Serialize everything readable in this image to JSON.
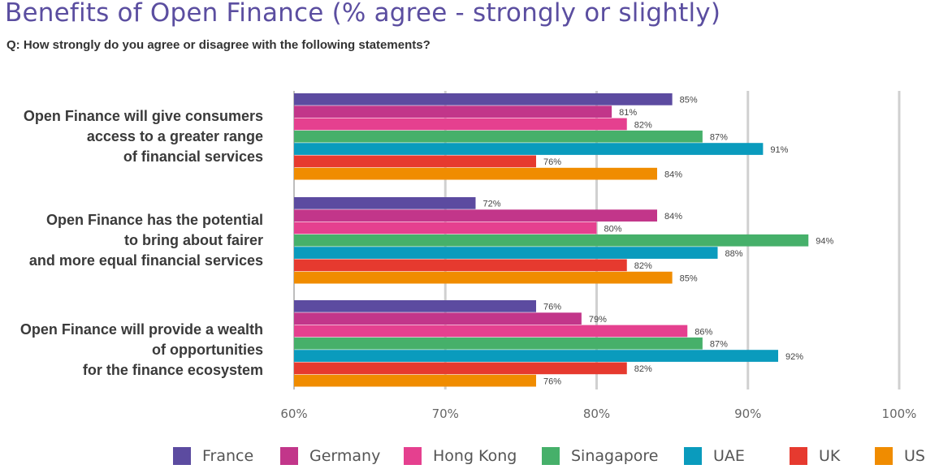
{
  "title": "Benefits of Open Finance (% agree - strongly or slightly)",
  "subtitle": "Q: How strongly do you agree or disagree with the following statements?",
  "chart_data": {
    "type": "bar",
    "orientation": "horizontal",
    "categories": [
      [
        "Open Finance will give consumers",
        "access to a greater range",
        "of financial services"
      ],
      [
        "Open Finance has the potential",
        "to bring about fairer",
        "and more equal financial services"
      ],
      [
        "Open Finance will provide a wealth",
        "of opportunities",
        "for the finance ecosystem"
      ]
    ],
    "series": [
      {
        "name": "France",
        "color": "#5c4ba0",
        "values": [
          85,
          72,
          76
        ],
        "labels": [
          "85%",
          "72%",
          "76%"
        ]
      },
      {
        "name": "Germany",
        "color": "#c2368a",
        "values": [
          81,
          84,
          79
        ],
        "labels": [
          "81%",
          "84%",
          "79%"
        ]
      },
      {
        "name": "Hong Kong",
        "color": "#e5408f",
        "values": [
          82,
          80,
          86
        ],
        "labels": [
          "82%",
          "80%",
          "86%"
        ]
      },
      {
        "name": "Sinagapore",
        "color": "#46b06a",
        "values": [
          87,
          94,
          87
        ],
        "labels": [
          "87%",
          "94%",
          "87%"
        ]
      },
      {
        "name": "UAE",
        "color": "#0a9bbd",
        "values": [
          91,
          88,
          92
        ],
        "labels": [
          "91%",
          "88%",
          "92%"
        ]
      },
      {
        "name": "UK",
        "color": "#e63a2f",
        "values": [
          76,
          82,
          82
        ],
        "labels": [
          "76%",
          "82%",
          "82%"
        ]
      },
      {
        "name": "US",
        "color": "#f08c00",
        "values": [
          84,
          85,
          76
        ],
        "labels": [
          "84%",
          "85%",
          "76%"
        ]
      }
    ],
    "xlim": [
      60,
      100
    ],
    "xticks": [
      60,
      70,
      80,
      90,
      100
    ],
    "xtick_labels": [
      "60%",
      "70%",
      "80%",
      "90%",
      "100%"
    ],
    "grid": true,
    "legend_position": "bottom"
  }
}
